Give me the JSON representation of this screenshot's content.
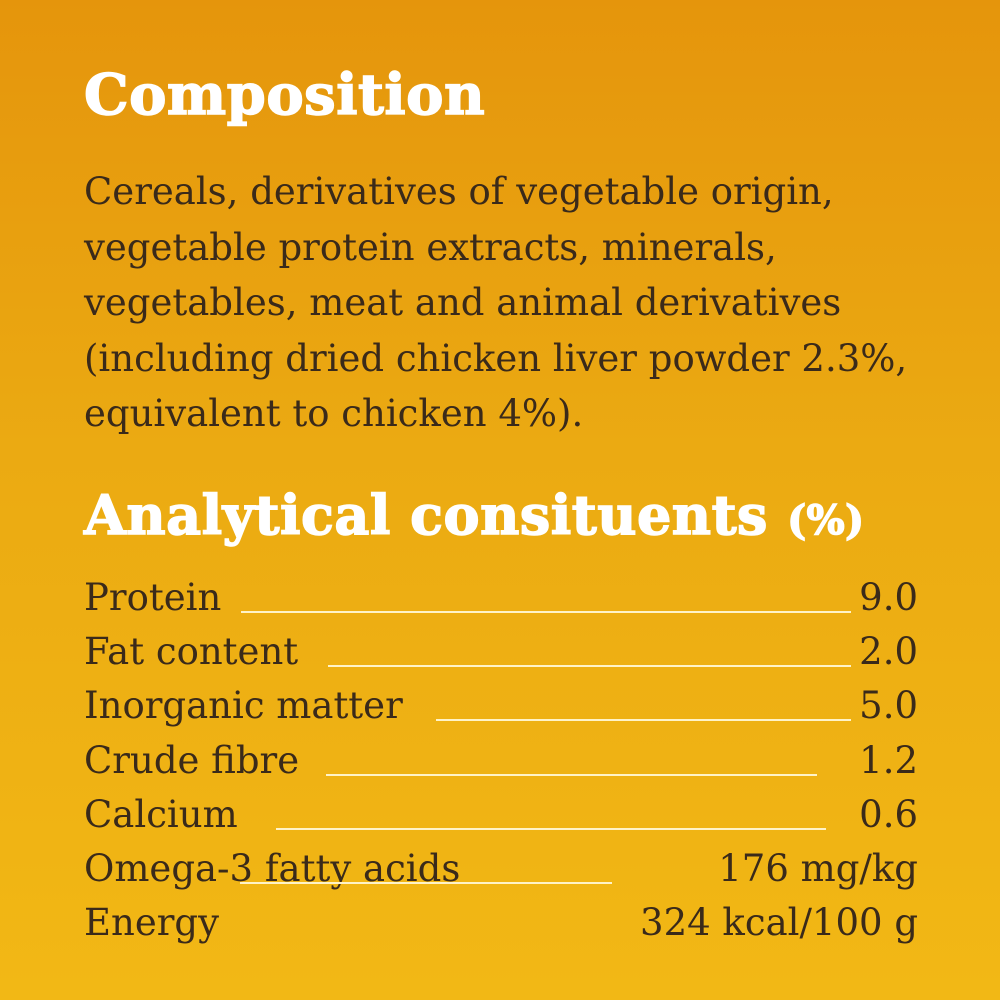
{
  "composition": {
    "title": "Composition",
    "text": "Cereals, derivatives of vegetable origin, vegetable protein extracts, minerals, vegetables, meat and animal derivatives (including dried chicken liver powder 2.3%, equivalent to chicken 4%)."
  },
  "analytical": {
    "title": "Analytical consituents",
    "unit": "(%)",
    "rows": [
      {
        "label": "Protein",
        "value": "9.0"
      },
      {
        "label": "Fat content",
        "value": "2.0"
      },
      {
        "label": "Inorganic matter",
        "value": "5.0"
      },
      {
        "label": "Crude fibre",
        "value": "1.2"
      },
      {
        "label": "Calcium",
        "value": "0.6"
      },
      {
        "label": "Omega-3 fatty acids",
        "value": "176 mg/kg"
      },
      {
        "label": "Energy",
        "value": "324 kcal/100 g"
      }
    ]
  }
}
